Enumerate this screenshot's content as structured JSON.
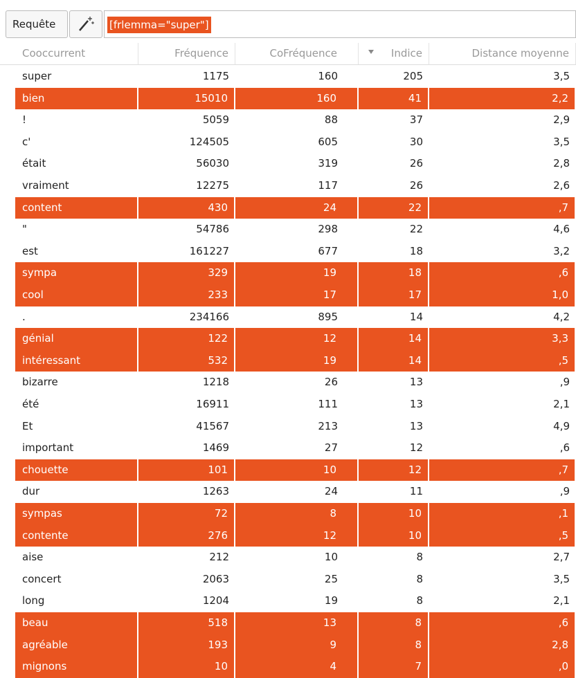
{
  "toolbar": {
    "button": "Requête",
    "query": "[frlemma=\"super\"]"
  },
  "table": {
    "columns": [
      "Cooccurrent",
      "Fréquence",
      "CoFréquence",
      "Indice",
      "Distance moyenne"
    ],
    "highlight_color": "#e95420",
    "rows": [
      {
        "cells": [
          "super",
          "1175",
          "160",
          "205",
          "3,5"
        ],
        "highlighted": false
      },
      {
        "cells": [
          "bien",
          "15010",
          "160",
          "41",
          "2,2"
        ],
        "highlighted": true
      },
      {
        "cells": [
          "!",
          "5059",
          "88",
          "37",
          "2,9"
        ],
        "highlighted": false
      },
      {
        "cells": [
          "c'",
          "124505",
          "605",
          "30",
          "3,5"
        ],
        "highlighted": false
      },
      {
        "cells": [
          "était",
          "56030",
          "319",
          "26",
          "2,8"
        ],
        "highlighted": false
      },
      {
        "cells": [
          "vraiment",
          "12275",
          "117",
          "26",
          "2,6"
        ],
        "highlighted": false
      },
      {
        "cells": [
          "content",
          "430",
          "24",
          "22",
          ",7"
        ],
        "highlighted": true
      },
      {
        "cells": [
          "\"",
          "54786",
          "298",
          "22",
          "4,6"
        ],
        "highlighted": false
      },
      {
        "cells": [
          "est",
          "161227",
          "677",
          "18",
          "3,2"
        ],
        "highlighted": false
      },
      {
        "cells": [
          "sympa",
          "329",
          "19",
          "18",
          ",6"
        ],
        "highlighted": true
      },
      {
        "cells": [
          "cool",
          "233",
          "17",
          "17",
          "1,0"
        ],
        "highlighted": true
      },
      {
        "cells": [
          ".",
          "234166",
          "895",
          "14",
          "4,2"
        ],
        "highlighted": false
      },
      {
        "cells": [
          "génial",
          "122",
          "12",
          "14",
          "3,3"
        ],
        "highlighted": true
      },
      {
        "cells": [
          "intéressant",
          "532",
          "19",
          "14",
          ",5"
        ],
        "highlighted": true
      },
      {
        "cells": [
          "bizarre",
          "1218",
          "26",
          "13",
          ",9"
        ],
        "highlighted": false
      },
      {
        "cells": [
          "été",
          "16911",
          "111",
          "13",
          "2,1"
        ],
        "highlighted": false
      },
      {
        "cells": [
          "Et",
          "41567",
          "213",
          "13",
          "4,9"
        ],
        "highlighted": false
      },
      {
        "cells": [
          "important",
          "1469",
          "27",
          "12",
          ",6"
        ],
        "highlighted": false
      },
      {
        "cells": [
          "chouette",
          "101",
          "10",
          "12",
          ",7"
        ],
        "highlighted": true
      },
      {
        "cells": [
          "dur",
          "1263",
          "24",
          "11",
          ",9"
        ],
        "highlighted": false
      },
      {
        "cells": [
          "sympas",
          "72",
          "8",
          "10",
          ",1"
        ],
        "highlighted": true
      },
      {
        "cells": [
          "contente",
          "276",
          "12",
          "10",
          ",5"
        ],
        "highlighted": true
      },
      {
        "cells": [
          "aise",
          "212",
          "10",
          "8",
          "2,7"
        ],
        "highlighted": false
      },
      {
        "cells": [
          "concert",
          "2063",
          "25",
          "8",
          "3,5"
        ],
        "highlighted": false
      },
      {
        "cells": [
          "long",
          "1204",
          "19",
          "8",
          "2,1"
        ],
        "highlighted": false
      },
      {
        "cells": [
          "beau",
          "518",
          "13",
          "8",
          ",6"
        ],
        "highlighted": true
      },
      {
        "cells": [
          "agréable",
          "193",
          "9",
          "8",
          "2,8"
        ],
        "highlighted": true
      },
      {
        "cells": [
          "mignons",
          "10",
          "4",
          "7",
          ",0"
        ],
        "highlighted": true
      }
    ]
  }
}
